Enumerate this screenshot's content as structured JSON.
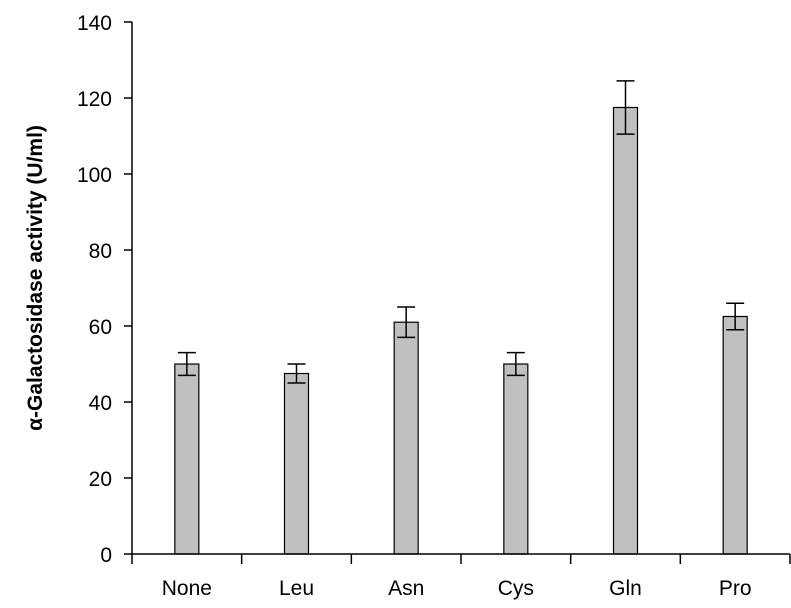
{
  "chart_data": {
    "type": "bar",
    "title": "",
    "xlabel": "",
    "ylabel": "α-Galactosidase activity (U/ml)",
    "ylim": [
      0,
      140
    ],
    "yticks": [
      0,
      20,
      40,
      60,
      80,
      100,
      120,
      140
    ],
    "grid": false,
    "categories": [
      "None",
      "Leu",
      "Asn",
      "Cys",
      "Gln",
      "Pro"
    ],
    "values": [
      50,
      47.5,
      61,
      50,
      117.5,
      62.5
    ],
    "errors": [
      3,
      2.5,
      4,
      3,
      7,
      3.5
    ],
    "bar_color": "#c0c0c0",
    "bar_edge_color": "#000000"
  }
}
